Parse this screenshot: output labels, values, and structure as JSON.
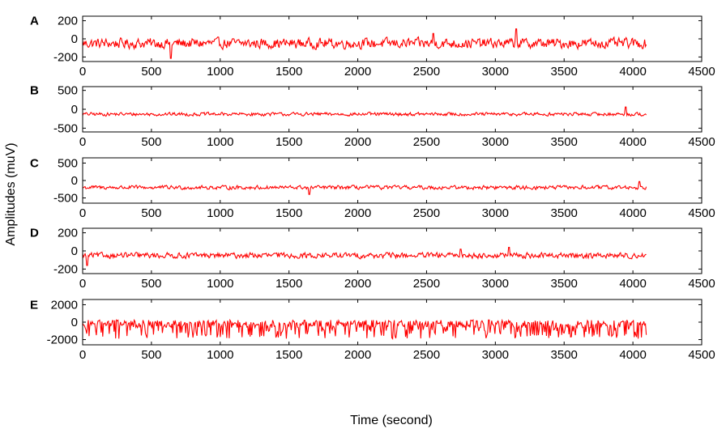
{
  "figure": {
    "ylabel": "Amplitudes (muV)",
    "xlabel": "Time (second)"
  },
  "chart_data": [
    {
      "panel": "A",
      "type": "line",
      "xlim": [
        0,
        4500
      ],
      "ylim": [
        -250,
        250
      ],
      "xticks": [
        0,
        500,
        1000,
        1500,
        2000,
        2500,
        3000,
        3500,
        4000,
        4500
      ],
      "yticks": [
        200,
        0,
        -200
      ],
      "grid": false,
      "color": "#ff0000",
      "series": [
        {
          "x_range": [
            0,
            4097
          ],
          "baseline": -50,
          "spread": 55,
          "spikes": [
            [
              640,
              -215
            ],
            [
              3150,
              110
            ],
            [
              2550,
              60
            ]
          ]
        }
      ]
    },
    {
      "panel": "B",
      "type": "line",
      "xlim": [
        0,
        4500
      ],
      "ylim": [
        -600,
        600
      ],
      "xticks": [
        0,
        500,
        1000,
        1500,
        2000,
        2500,
        3000,
        3500,
        4000,
        4500
      ],
      "yticks": [
        500,
        0,
        -500
      ],
      "grid": false,
      "color": "#ff0000",
      "series": [
        {
          "x_range": [
            0,
            4097
          ],
          "baseline": -130,
          "spread": 45,
          "spikes": [
            [
              3950,
              60
            ]
          ]
        }
      ]
    },
    {
      "panel": "C",
      "type": "line",
      "xlim": [
        0,
        4500
      ],
      "ylim": [
        -650,
        650
      ],
      "xticks": [
        0,
        500,
        1000,
        1500,
        2000,
        2500,
        3000,
        3500,
        4000,
        4500
      ],
      "yticks": [
        500,
        0,
        -500
      ],
      "grid": false,
      "color": "#ff0000",
      "series": [
        {
          "x_range": [
            0,
            4097
          ],
          "baseline": -200,
          "spread": 55,
          "spikes": [
            [
              1650,
              -400
            ],
            [
              4050,
              -30
            ]
          ]
        }
      ]
    },
    {
      "panel": "D",
      "type": "line",
      "xlim": [
        0,
        4500
      ],
      "ylim": [
        -250,
        250
      ],
      "xticks": [
        0,
        500,
        1000,
        1500,
        2000,
        2500,
        3000,
        3500,
        4000,
        4500
      ],
      "yticks": [
        200,
        0,
        -200
      ],
      "grid": false,
      "color": "#ff0000",
      "series": [
        {
          "x_range": [
            0,
            4097
          ],
          "baseline": -50,
          "spread": 30,
          "spikes": [
            [
              30,
              -160
            ],
            [
              2750,
              20
            ],
            [
              3100,
              40
            ]
          ]
        }
      ]
    },
    {
      "panel": "E",
      "type": "line",
      "xlim": [
        0,
        4500
      ],
      "ylim": [
        -2600,
        2600
      ],
      "xticks": [
        0,
        500,
        1000,
        1500,
        2000,
        2500,
        3000,
        3500,
        4000,
        4500
      ],
      "yticks": [
        2000,
        0,
        -2000
      ],
      "grid": false,
      "color": "#ff0000",
      "series": [
        {
          "x_range": [
            0,
            4097
          ],
          "baseline": -200,
          "spread": 250,
          "spikes": [
            [
              2950,
              250
            ]
          ]
        }
      ]
    }
  ]
}
